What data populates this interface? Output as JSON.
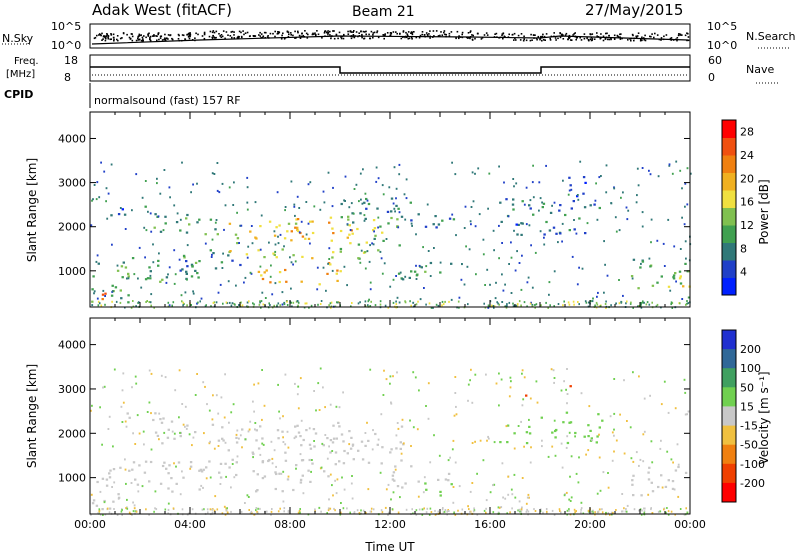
{
  "header": {
    "station": "Adak West (fitACF)",
    "beam": "Beam 21",
    "date": "27/May/2015"
  },
  "strip_panels": {
    "nsky_label": "N.Sky",
    "nsearch_label": "N.Search",
    "nsky_ticks": [
      "10^5",
      "10^0"
    ],
    "nsearch_ticks": [
      "10^5",
      "10^0"
    ],
    "freq_label_top": "Freq.",
    "freq_label_unit": "[MHz]",
    "freq_ticks": [
      "18",
      "8"
    ],
    "nave_label": "Nave",
    "nave_ticks": [
      "60",
      "0"
    ],
    "cpid_label": "CPID",
    "cpid_text": "normalsound (fast) 157 RF"
  },
  "chart_data": [
    {
      "type": "heatmap",
      "name": "power",
      "xlabel": "",
      "ylabel": "Slant Range [km]",
      "xlim": [
        0,
        24
      ],
      "ylim": [
        180,
        4600
      ],
      "yticks": [
        "1000",
        "2000",
        "3000",
        "4000"
      ],
      "yticks_values": [
        1000,
        2000,
        3000,
        4000
      ],
      "colorbar": {
        "label": "Power [dB]",
        "ticks": [
          "4",
          "8",
          "12",
          "16",
          "20",
          "24",
          "28"
        ],
        "tick_values": [
          4,
          8,
          12,
          16,
          20,
          24,
          28
        ],
        "range": [
          0,
          30
        ],
        "colors": [
          "#0020ff",
          "#2040c8",
          "#307878",
          "#40a050",
          "#80c050",
          "#f0e040",
          "#f0b020",
          "#f08010",
          "#f05010",
          "#ff0000"
        ]
      },
      "regions": [
        {
          "t": [
            0.0,
            1.5
          ],
          "r": [
            250,
            1300
          ],
          "v": 12
        },
        {
          "t": [
            0.0,
            0.8
          ],
          "r": [
            300,
            650
          ],
          "v": 27
        },
        {
          "t": [
            1.5,
            4.5
          ],
          "r": [
            700,
            1400
          ],
          "v": 10
        },
        {
          "t": [
            0.7,
            3.0
          ],
          "r": [
            2250,
            2500
          ],
          "v": 6
        },
        {
          "t": [
            2.5,
            5.5
          ],
          "r": [
            1800,
            2300
          ],
          "v": 10
        },
        {
          "t": [
            3.5,
            6.0
          ],
          "r": [
            1000,
            1500
          ],
          "v": 8
        },
        {
          "t": [
            5.5,
            9.0
          ],
          "r": [
            1300,
            2200
          ],
          "v": 16
        },
        {
          "t": [
            6.5,
            10.0
          ],
          "r": [
            700,
            1200
          ],
          "v": 20
        },
        {
          "t": [
            8.0,
            10.5
          ],
          "r": [
            1700,
            2200
          ],
          "v": 20
        },
        {
          "t": [
            9.5,
            12.5
          ],
          "r": [
            1300,
            2300
          ],
          "v": 14
        },
        {
          "t": [
            10.0,
            13.0
          ],
          "r": [
            2100,
            2700
          ],
          "v": 8
        },
        {
          "t": [
            12.0,
            14.5
          ],
          "r": [
            800,
            1300
          ],
          "v": 10
        },
        {
          "t": [
            13.0,
            15.0
          ],
          "r": [
            2000,
            2400
          ],
          "v": 8
        },
        {
          "t": [
            16.3,
            17.8
          ],
          "r": [
            1700,
            2700
          ],
          "v": 6
        },
        {
          "t": [
            18.0,
            20.5
          ],
          "r": [
            1800,
            2600
          ],
          "v": 7
        },
        {
          "t": [
            19.0,
            20.0
          ],
          "r": [
            2600,
            3200
          ],
          "v": 5
        },
        {
          "t": [
            21.5,
            24.0
          ],
          "r": [
            600,
            1300
          ],
          "v": 11
        },
        {
          "t": [
            22.5,
            24.0
          ],
          "r": [
            600,
            900
          ],
          "v": 17
        }
      ]
    },
    {
      "type": "heatmap",
      "name": "velocity",
      "xlabel": "Time UT",
      "ylabel": "Slant Range [km]",
      "xlim": [
        0,
        24
      ],
      "ylim": [
        180,
        4600
      ],
      "xticks": [
        "00:00",
        "04:00",
        "08:00",
        "12:00",
        "16:00",
        "20:00",
        "00:00"
      ],
      "xticks_values": [
        0,
        4,
        8,
        12,
        16,
        20,
        24
      ],
      "yticks": [
        "1000",
        "2000",
        "3000",
        "4000"
      ],
      "yticks_values": [
        1000,
        2000,
        3000,
        4000
      ],
      "colorbar": {
        "label": "Velocity [m s⁻¹]",
        "ticks": [
          "200",
          "100",
          "50",
          "15",
          "-15",
          "-50",
          "-100",
          "-200"
        ],
        "tick_values": [
          200,
          100,
          50,
          15,
          -15,
          -50,
          -100,
          -200
        ],
        "colors": [
          "#2030d0",
          "#306898",
          "#40a060",
          "#70d050",
          "#c8c8c8",
          "#f0c040",
          "#f08010",
          "#f04000",
          "#ff0000"
        ]
      },
      "regions": [
        {
          "t": [
            0.0,
            1.5
          ],
          "r": [
            250,
            1300
          ],
          "v": 0
        },
        {
          "t": [
            1.5,
            4.5
          ],
          "r": [
            700,
            1400
          ],
          "v": 0
        },
        {
          "t": [
            0.7,
            3.0
          ],
          "r": [
            2250,
            2500
          ],
          "v": 0
        },
        {
          "t": [
            2.5,
            5.5
          ],
          "r": [
            1800,
            2300
          ],
          "v": 0
        },
        {
          "t": [
            3.5,
            6.0
          ],
          "r": [
            1000,
            1500
          ],
          "v": 0
        },
        {
          "t": [
            5.5,
            9.0
          ],
          "r": [
            1300,
            2200
          ],
          "v": 0
        },
        {
          "t": [
            6.5,
            10.0
          ],
          "r": [
            700,
            1200
          ],
          "v": 0
        },
        {
          "t": [
            8.0,
            10.5
          ],
          "r": [
            1700,
            2200
          ],
          "v": 0
        },
        {
          "t": [
            9.5,
            12.5
          ],
          "r": [
            1300,
            2300
          ],
          "v": 0
        },
        {
          "t": [
            12.0,
            14.5
          ],
          "r": [
            800,
            1300
          ],
          "v": 0
        },
        {
          "t": [
            13.0,
            14.5
          ],
          "r": [
            600,
            900
          ],
          "v": 40
        },
        {
          "t": [
            16.3,
            17.8
          ],
          "r": [
            1700,
            2200
          ],
          "v": 40
        },
        {
          "t": [
            18.0,
            20.5
          ],
          "r": [
            1800,
            2600
          ],
          "v": 20
        },
        {
          "t": [
            17.0,
            17.5
          ],
          "r": [
            2750,
            2950
          ],
          "v": -150
        },
        {
          "t": [
            19.0,
            19.4
          ],
          "r": [
            2900,
            3100
          ],
          "v": -150
        },
        {
          "t": [
            21.5,
            24.0
          ],
          "r": [
            600,
            1300
          ],
          "v": 0
        }
      ]
    }
  ]
}
